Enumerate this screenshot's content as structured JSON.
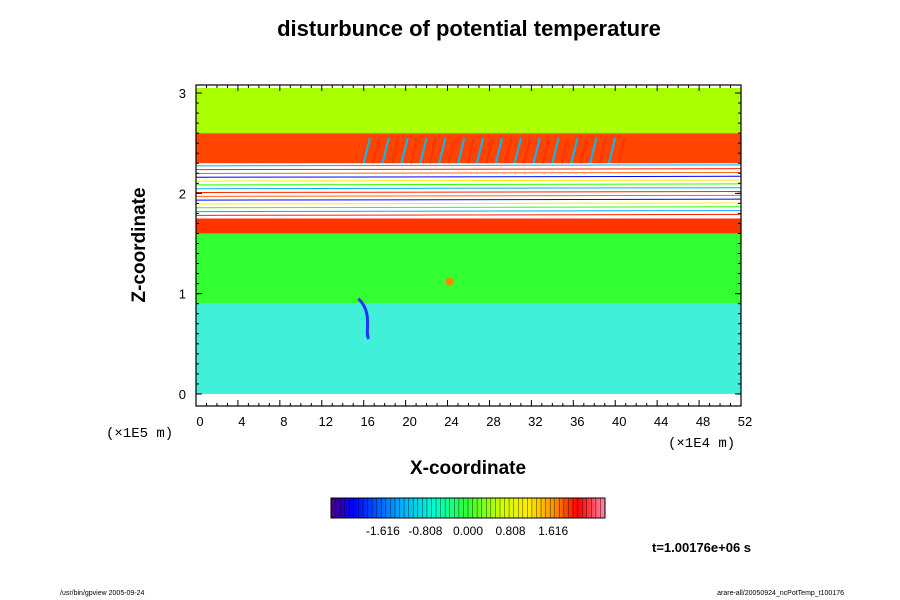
{
  "chart_data": {
    "type": "heatmap",
    "title": "disturbunce of potential temperature",
    "xlabel": "X-coordinate",
    "ylabel": "Z-coordinate",
    "x_unit": "(×1E4 m)",
    "y_unit": "(×1E5 m)",
    "xlim": [
      0,
      52
    ],
    "ylim": [
      0,
      3
    ],
    "x_ticks": [
      "0",
      "4",
      "8",
      "12",
      "16",
      "20",
      "24",
      "28",
      "32",
      "36",
      "40",
      "44",
      "48",
      "52"
    ],
    "y_ticks": [
      "0",
      "1",
      "2",
      "3"
    ],
    "colorbar": {
      "ticks": [
        "-1.616",
        "-0.808",
        "0.000",
        "0.808",
        "1.616"
      ],
      "range": [
        -2.6,
        2.6
      ],
      "colors": [
        "#4b0082",
        "#0000ff",
        "#00c8ff",
        "#00ff99",
        "#33ff00",
        "#ccff00",
        "#ffff00",
        "#ff8800",
        "#ff0000",
        "#ff7788"
      ]
    },
    "bands": [
      {
        "z": [
          0.0,
          0.9
        ],
        "value": -0.5,
        "desc_color": "#40f0d8"
      },
      {
        "z": [
          0.9,
          1.6
        ],
        "value": 0.0,
        "desc_color": "#33ff33"
      },
      {
        "z": [
          1.6,
          1.75
        ],
        "value": 1.5,
        "desc_color": "#ff3300"
      },
      {
        "z": [
          1.75,
          2.3
        ],
        "value": 2.6,
        "desc_color": "#ffffff"
      },
      {
        "z": [
          2.3,
          2.6
        ],
        "value": 1.2,
        "desc_color": "#ff4400"
      },
      {
        "z": [
          2.6,
          3.05
        ],
        "value": 0.4,
        "desc_color": "#aaff00"
      }
    ]
  },
  "time_label": "t=1.00176e+06 s",
  "footer_left": "/usr/bin/gpview 2005-09-24",
  "footer_right": "arare-all/20050924_ncPotTemp_t100176"
}
